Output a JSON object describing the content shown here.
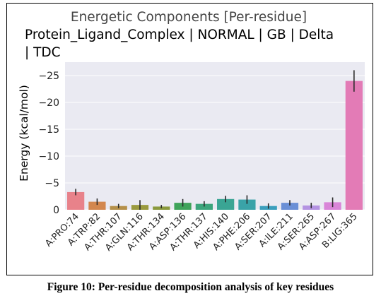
{
  "caption": "Figure 10:  Per-residue decomposition analysis of key residues",
  "chart_data": {
    "type": "bar",
    "title": "Energetic Components [Per-residue]",
    "subtitle_lines": [
      "Protein_Ligand_Complex | NORMAL | GB | Delta",
      "| TDC"
    ],
    "xlabel": "",
    "ylabel": "Energy (kcal/mol)",
    "y_axis_inverted": true,
    "ylim": [
      0,
      -27.5
    ],
    "yticks": [
      0,
      -5,
      -10,
      -15,
      -20,
      -25
    ],
    "ytick_labels": [
      "0",
      "−5",
      "−10",
      "−15",
      "−20",
      "−25"
    ],
    "grid": true,
    "background_color": "#eaeaf2",
    "categories": [
      "A:PRO:74",
      "A:TRP:82",
      "A:THR:107",
      "A:GLN:116",
      "A:THR:134",
      "A:ASP:136",
      "A:THR:137",
      "A:HIS:140",
      "A:PHE:206",
      "A:SER:207",
      "A:ILE:211",
      "A:SER:265",
      "A:ASP:267",
      "B:LIG:365"
    ],
    "values": [
      -3.3,
      -1.5,
      -0.7,
      -0.9,
      -0.6,
      -1.3,
      -1.1,
      -2.0,
      -1.9,
      -0.7,
      -1.3,
      -0.8,
      -1.4,
      -24.0
    ],
    "errors": [
      0.6,
      0.6,
      0.4,
      0.9,
      0.3,
      0.7,
      0.5,
      0.6,
      0.8,
      0.5,
      0.5,
      0.5,
      0.9,
      2.0
    ],
    "colors": [
      "#e8828a",
      "#d3874e",
      "#b5904a",
      "#9a9a3e",
      "#8b9a3e",
      "#3fa35a",
      "#3ca57c",
      "#3aa594",
      "#3aa3a8",
      "#3b9fbd",
      "#6a8fd6",
      "#b493e2",
      "#d985d8",
      "#e37bb6"
    ]
  }
}
